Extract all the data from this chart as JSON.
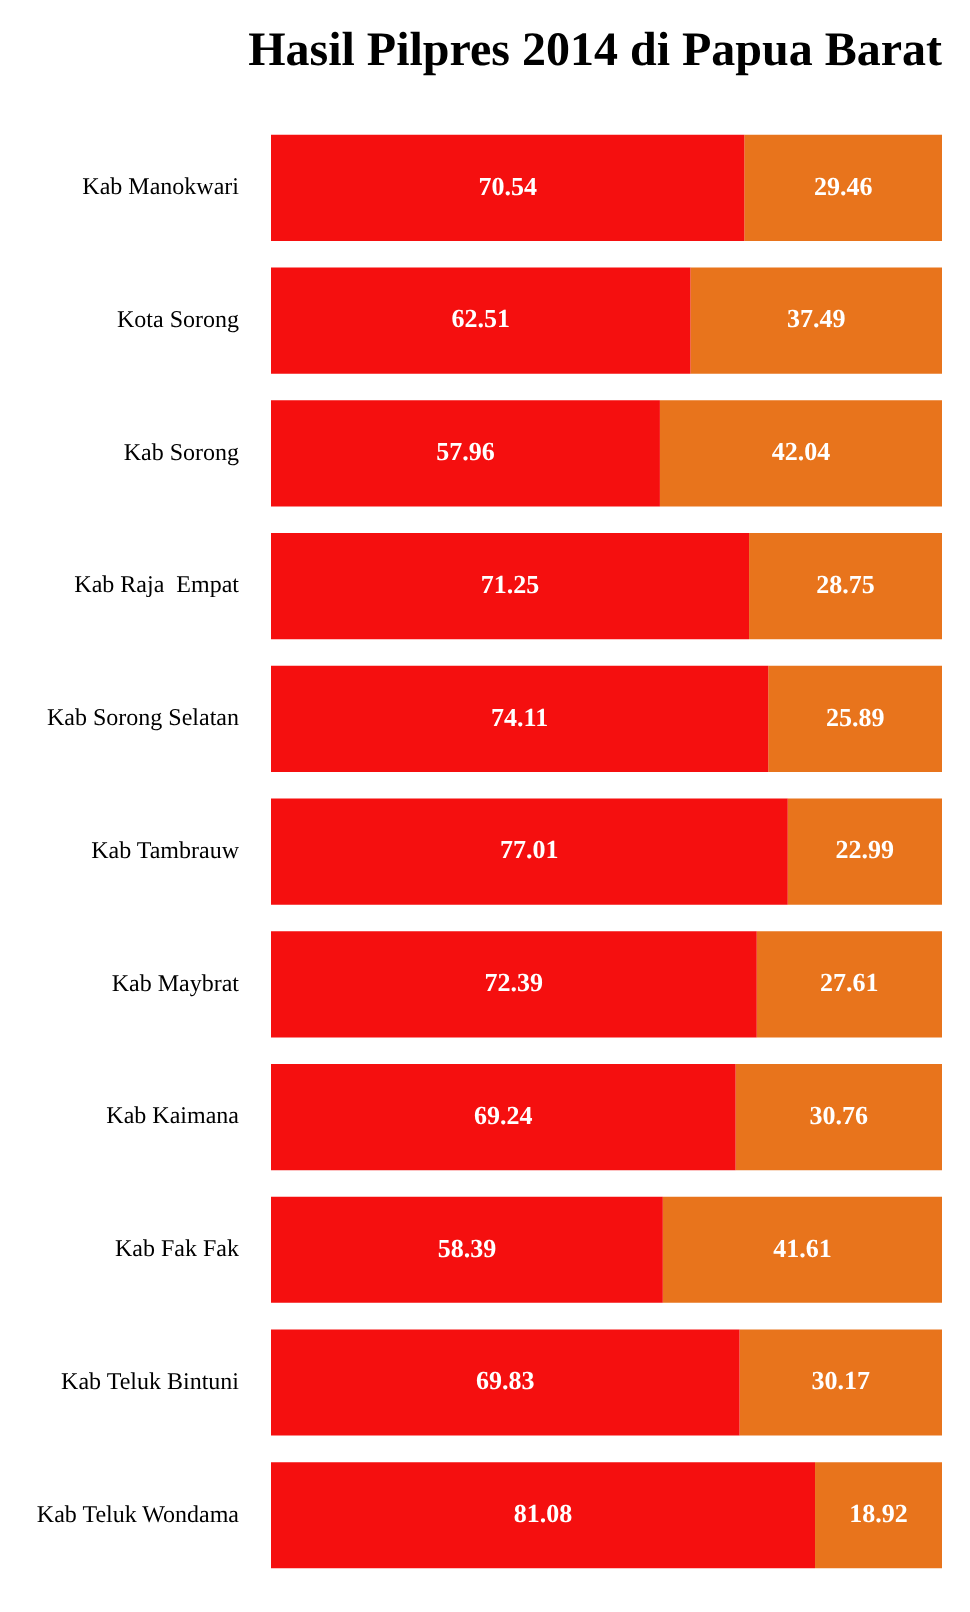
{
  "chart_data": {
    "type": "bar",
    "title": "Hasil Pilpres 2014 di Papua Barat",
    "orientation": "horizontal",
    "stacked": true,
    "data_labels": true,
    "legend": false,
    "tick_labels": "y",
    "xlim": [
      0,
      100
    ],
    "categories": [
      "Kab Manokwari",
      "Kota Sorong",
      "Kab Sorong",
      "Kab Raja  Empat",
      "Kab Sorong Selatan",
      "Kab Tambrauw",
      "Kab Maybrat",
      "Kab Kaimana",
      "Kab Fak Fak",
      "Kab Teluk Bintuni",
      "Kab Teluk Wondama"
    ],
    "series": [
      {
        "color": "#f50f0f",
        "values": [
          70.54,
          62.51,
          57.96,
          71.25,
          74.11,
          77.01,
          72.39,
          69.24,
          58.39,
          69.83,
          81.08
        ]
      },
      {
        "color": "#e8741c",
        "values": [
          29.46,
          37.49,
          42.04,
          28.75,
          25.89,
          22.99,
          27.61,
          30.76,
          41.61,
          30.17,
          18.92
        ]
      }
    ]
  }
}
